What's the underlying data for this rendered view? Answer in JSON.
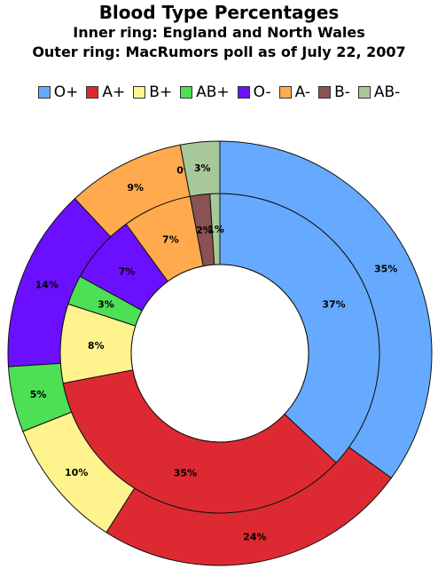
{
  "chart_data": {
    "type": "pie",
    "subtype": "double-donut",
    "title": "Blood Type Percentages",
    "subtitle_1": "Inner ring: England and North Wales",
    "subtitle_2": "Outer ring: MacRumors poll as of July 22, 2007",
    "legend_position": "top",
    "categories": [
      "O+",
      "A+",
      "B+",
      "AB+",
      "O-",
      "A-",
      "B-",
      "AB-"
    ],
    "colors": [
      "#66aaff",
      "#dd2a32",
      "#fff38e",
      "#4ddf55",
      "#6b10ff",
      "#ffaa4d",
      "#8a5252",
      "#a7c99a"
    ],
    "series": [
      {
        "ring": "inner",
        "values": [
          37,
          35,
          8,
          3,
          7,
          7,
          2,
          1
        ],
        "labels": [
          "37%",
          "35%",
          "8%",
          "3%",
          "7%",
          "7%",
          "2%",
          "1%"
        ]
      },
      {
        "ring": "outer",
        "values": [
          35,
          24,
          10,
          5,
          14,
          9,
          0,
          3
        ],
        "labels": [
          "35%",
          "24%",
          "10%",
          "5%",
          "14%",
          "9%",
          "0%",
          "3%"
        ]
      }
    ]
  }
}
